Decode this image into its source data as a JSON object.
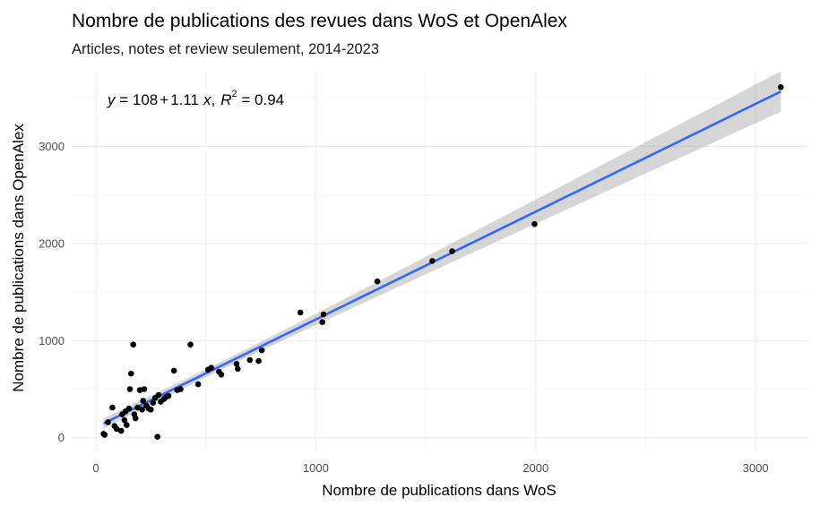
{
  "chart_data": {
    "type": "scatter",
    "title": "Nombre de publications des revues dans WoS et OpenAlex",
    "subtitle": "Articles, notes et review seulement, 2014-2023",
    "xlabel": "Nombre de publications dans WoS",
    "ylabel": "Nombre de publications dans OpenAlex",
    "xlim": [
      -110,
      3240
    ],
    "ylim": [
      -150,
      3770
    ],
    "x_ticks": [
      0,
      1000,
      2000,
      3000
    ],
    "y_ticks": [
      0,
      1000,
      2000,
      3000
    ],
    "x_tick_labels": [
      "0",
      "1000",
      "2000",
      "3000"
    ],
    "y_tick_labels": [
      "0",
      "1000",
      "2000",
      "3000"
    ],
    "grid": true,
    "legend": "none",
    "annotation": {
      "y": "y",
      "eq": " = 108",
      "plus": "+",
      "coef": "1.11",
      "x": "x",
      "comma": ",",
      "r": "R",
      "sup": "2",
      "r2": " = 0.94"
    },
    "points": [
      [
        35,
        40
      ],
      [
        40,
        30
      ],
      [
        55,
        160
      ],
      [
        75,
        310
      ],
      [
        85,
        120
      ],
      [
        95,
        90
      ],
      [
        115,
        70
      ],
      [
        120,
        240
      ],
      [
        130,
        180
      ],
      [
        135,
        270
      ],
      [
        140,
        130
      ],
      [
        150,
        300
      ],
      [
        155,
        500
      ],
      [
        160,
        660
      ],
      [
        170,
        960
      ],
      [
        175,
        240
      ],
      [
        180,
        200
      ],
      [
        190,
        310
      ],
      [
        200,
        490
      ],
      [
        210,
        290
      ],
      [
        215,
        380
      ],
      [
        220,
        500
      ],
      [
        230,
        330
      ],
      [
        240,
        300
      ],
      [
        250,
        290
      ],
      [
        260,
        360
      ],
      [
        270,
        410
      ],
      [
        280,
        10
      ],
      [
        285,
        440
      ],
      [
        295,
        370
      ],
      [
        310,
        400
      ],
      [
        320,
        420
      ],
      [
        330,
        430
      ],
      [
        355,
        690
      ],
      [
        370,
        490
      ],
      [
        385,
        500
      ],
      [
        430,
        960
      ],
      [
        465,
        550
      ],
      [
        510,
        700
      ],
      [
        525,
        720
      ],
      [
        560,
        680
      ],
      [
        570,
        650
      ],
      [
        640,
        760
      ],
      [
        645,
        710
      ],
      [
        700,
        800
      ],
      [
        740,
        790
      ],
      [
        755,
        900
      ],
      [
        930,
        1290
      ],
      [
        1030,
        1190
      ],
      [
        1035,
        1270
      ],
      [
        1280,
        1610
      ],
      [
        1530,
        1820
      ],
      [
        1620,
        1920
      ],
      [
        1995,
        2200
      ],
      [
        3115,
        3610
      ]
    ],
    "fit": {
      "intercept": 108,
      "slope": 1.11,
      "r2": 0.94,
      "x_range": [
        35,
        3115
      ],
      "line_color": "#3366ff",
      "band_color": "#999999"
    }
  }
}
